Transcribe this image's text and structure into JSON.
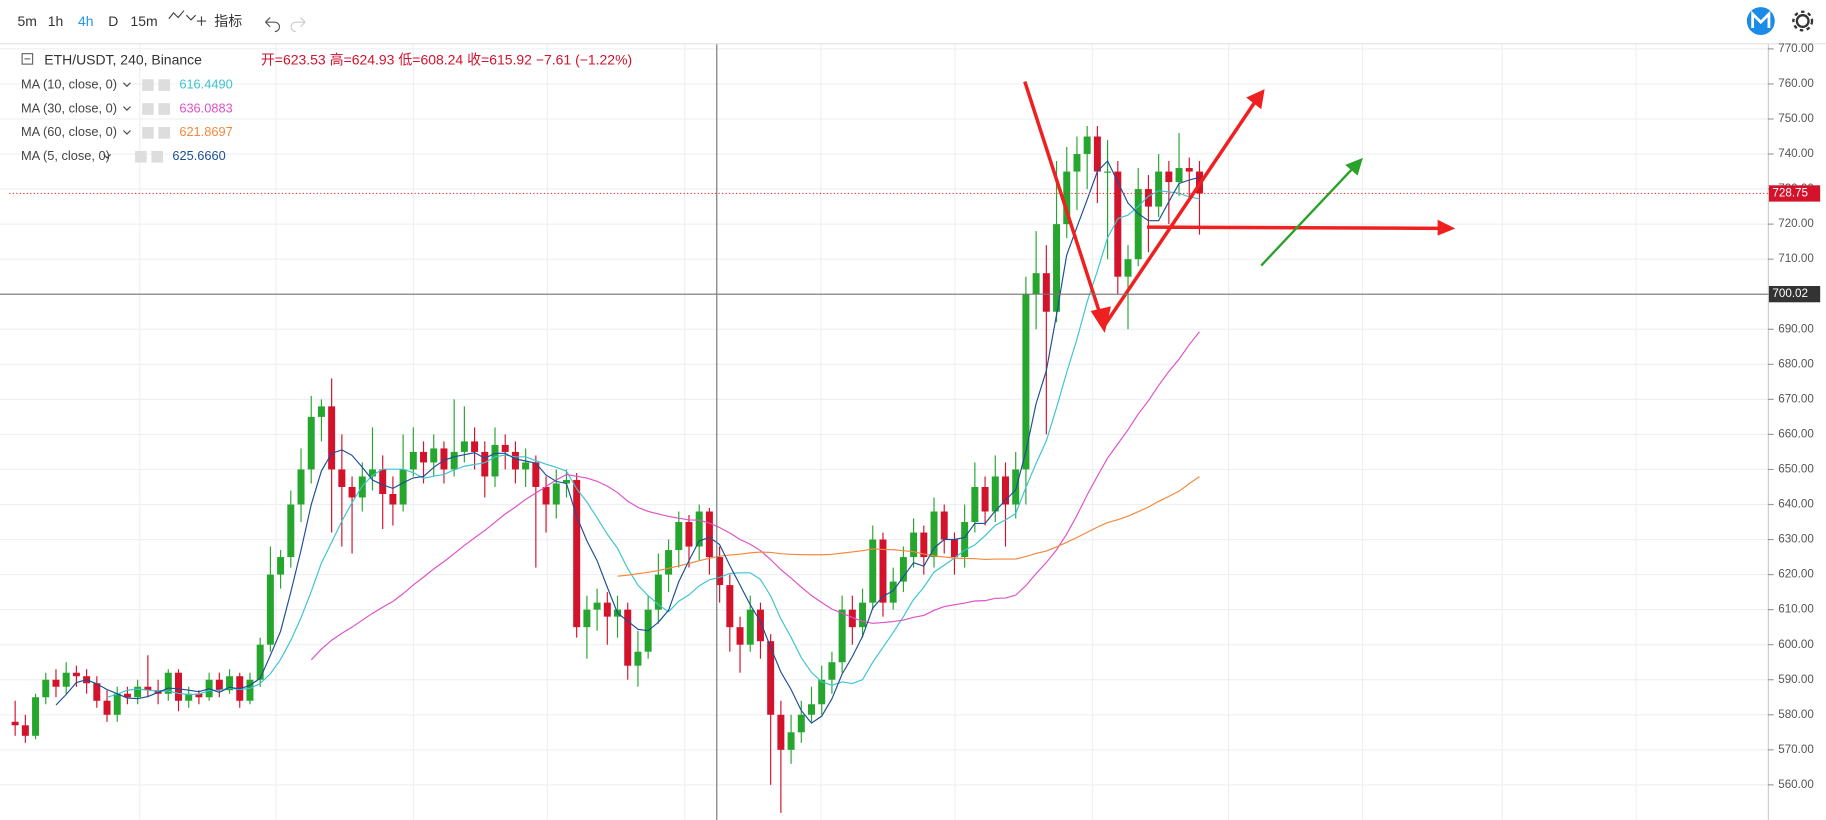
{
  "toolbar": {
    "intervals": [
      "5m",
      "1h",
      "4h",
      "D",
      "15m"
    ],
    "active": "4h",
    "indicators": "指标"
  },
  "legend": {
    "symbol": "ETH/USDT, 240, Binance",
    "open": "开=623.53",
    "high": "高=624.93",
    "low": "低=608.24",
    "close": "收=615.92",
    "change": "−7.61 (−1.22%)"
  },
  "chart_data": {
    "type": "candlestick",
    "up_color": "#26a62e",
    "down_color": "#d3122c",
    "candles": [
      [
        578,
        584,
        574,
        577
      ],
      [
        577,
        580,
        572,
        574
      ],
      [
        574,
        586,
        573,
        585
      ],
      [
        585,
        592,
        583,
        590
      ],
      [
        590,
        593,
        585,
        588
      ],
      [
        588,
        595,
        586,
        592
      ],
      [
        592,
        594,
        588,
        591
      ],
      [
        591,
        593,
        586,
        589
      ],
      [
        589,
        591,
        582,
        584
      ],
      [
        584,
        587,
        578,
        580
      ],
      [
        580,
        588,
        578,
        586
      ],
      [
        586,
        588,
        583,
        585
      ],
      [
        585,
        590,
        583,
        588
      ],
      [
        588,
        597,
        585,
        587
      ],
      [
        587,
        590,
        583,
        586
      ],
      [
        586,
        593,
        584,
        592
      ],
      [
        592,
        593,
        581,
        584
      ],
      [
        584,
        588,
        582,
        586
      ],
      [
        586,
        587,
        583,
        585
      ],
      [
        585,
        592,
        584,
        590
      ],
      [
        590,
        592,
        585,
        587
      ],
      [
        587,
        593,
        586,
        591
      ],
      [
        591,
        592,
        582,
        584
      ],
      [
        584,
        592,
        583,
        590
      ],
      [
        590,
        602,
        588,
        600
      ],
      [
        600,
        628,
        598,
        620
      ],
      [
        620,
        627,
        616,
        625
      ],
      [
        625,
        644,
        622,
        640
      ],
      [
        640,
        656,
        635,
        650
      ],
      [
        650,
        671,
        646,
        665
      ],
      [
        665,
        670,
        658,
        668
      ],
      [
        668,
        676,
        632,
        650
      ],
      [
        650,
        660,
        628,
        645
      ],
      [
        645,
        648,
        626,
        642
      ],
      [
        642,
        652,
        638,
        648
      ],
      [
        648,
        662,
        644,
        650
      ],
      [
        650,
        654,
        633,
        643
      ],
      [
        643,
        648,
        634,
        640
      ],
      [
        640,
        660,
        638,
        650
      ],
      [
        650,
        662,
        648,
        655
      ],
      [
        655,
        658,
        646,
        652
      ],
      [
        652,
        660,
        648,
        656
      ],
      [
        656,
        658,
        646,
        650
      ],
      [
        650,
        670,
        648,
        655
      ],
      [
        655,
        668,
        652,
        658
      ],
      [
        658,
        662,
        650,
        655
      ],
      [
        655,
        658,
        642,
        648
      ],
      [
        648,
        662,
        645,
        657
      ],
      [
        657,
        660,
        650,
        655
      ],
      [
        655,
        658,
        646,
        650
      ],
      [
        650,
        656,
        645,
        652
      ],
      [
        652,
        654,
        622,
        645
      ],
      [
        645,
        648,
        632,
        640
      ],
      [
        640,
        650,
        636,
        646
      ],
      [
        646,
        650,
        642,
        647
      ],
      [
        647,
        649,
        602,
        605
      ],
      [
        605,
        614,
        596,
        610
      ],
      [
        610,
        616,
        604,
        612
      ],
      [
        612,
        615,
        600,
        608
      ],
      [
        608,
        614,
        602,
        610
      ],
      [
        610,
        612,
        590,
        594
      ],
      [
        594,
        604,
        588,
        598
      ],
      [
        598,
        614,
        596,
        610
      ],
      [
        610,
        626,
        606,
        620
      ],
      [
        620,
        630,
        615,
        627
      ],
      [
        627,
        638,
        622,
        635
      ],
      [
        635,
        637,
        622,
        628
      ],
      [
        628,
        640,
        624,
        638
      ],
      [
        638,
        639,
        620,
        625
      ],
      [
        625,
        628,
        612,
        617
      ],
      [
        617,
        620,
        598,
        605
      ],
      [
        605,
        608,
        592,
        600
      ],
      [
        600,
        614,
        598,
        610
      ],
      [
        610,
        612,
        596,
        601
      ],
      [
        601,
        603,
        560,
        580
      ],
      [
        580,
        584,
        552,
        570
      ],
      [
        570,
        580,
        566,
        575
      ],
      [
        575,
        584,
        572,
        580
      ],
      [
        580,
        588,
        578,
        583
      ],
      [
        583,
        594,
        580,
        590
      ],
      [
        590,
        598,
        586,
        595
      ],
      [
        595,
        614,
        592,
        610
      ],
      [
        610,
        614,
        600,
        605
      ],
      [
        605,
        616,
        602,
        612
      ],
      [
        612,
        634,
        610,
        630
      ],
      [
        630,
        632,
        608,
        612
      ],
      [
        612,
        622,
        610,
        618
      ],
      [
        618,
        628,
        615,
        625
      ],
      [
        625,
        636,
        622,
        632
      ],
      [
        632,
        634,
        620,
        625
      ],
      [
        625,
        642,
        622,
        638
      ],
      [
        638,
        640,
        626,
        630
      ],
      [
        630,
        632,
        620,
        625
      ],
      [
        625,
        640,
        622,
        635
      ],
      [
        635,
        652,
        632,
        645
      ],
      [
        645,
        648,
        634,
        638
      ],
      [
        638,
        654,
        635,
        648
      ],
      [
        648,
        652,
        628,
        640
      ],
      [
        640,
        655,
        636,
        650
      ],
      [
        650,
        705,
        640,
        700
      ],
      [
        700,
        718,
        690,
        706
      ],
      [
        706,
        714,
        660,
        695
      ],
      [
        695,
        738,
        692,
        720
      ],
      [
        720,
        742,
        716,
        735
      ],
      [
        735,
        745,
        724,
        740
      ],
      [
        740,
        748,
        730,
        745
      ],
      [
        745,
        748,
        726,
        735
      ],
      [
        735,
        744,
        710,
        735
      ],
      [
        735,
        738,
        700,
        705
      ],
      [
        705,
        714,
        690,
        710
      ],
      [
        710,
        736,
        708,
        730
      ],
      [
        730,
        734,
        712,
        725
      ],
      [
        725,
        740,
        722,
        735
      ],
      [
        735,
        738,
        720,
        732
      ],
      [
        732,
        746,
        728,
        736
      ],
      [
        736,
        739,
        727,
        735
      ],
      [
        735,
        738,
        717,
        728.75
      ]
    ],
    "indicators": [
      {
        "name": "MA (10, close, 0)",
        "period": 10,
        "value": "616.4490",
        "color": "#3cc4d0"
      },
      {
        "name": "MA (30, close, 0)",
        "period": 30,
        "value": "636.0883",
        "color": "#e050c8"
      },
      {
        "name": "MA (60, close, 0)",
        "period": 60,
        "value": "621.8697",
        "color": "#f4883d"
      },
      {
        "name": "MA (5, close, 0)",
        "period": 5,
        "value": "625.6660",
        "color": "#1c4f96"
      }
    ],
    "ylim": [
      550,
      771.3
    ],
    "yticks": [
      {
        "value": 560,
        "label": "560.00"
      },
      {
        "value": 570,
        "label": "570.00"
      },
      {
        "value": 580,
        "label": "580.00"
      },
      {
        "value": 590,
        "label": "590.00"
      },
      {
        "value": 600,
        "label": "600.00"
      },
      {
        "value": 610,
        "label": "610.00"
      },
      {
        "value": 620,
        "label": "620.00"
      },
      {
        "value": 630,
        "label": "630.00"
      },
      {
        "value": 640,
        "label": "640.00"
      },
      {
        "value": 650,
        "label": "650.00"
      },
      {
        "value": 660,
        "label": "660.00"
      },
      {
        "value": 670,
        "label": "670.00"
      },
      {
        "value": 680,
        "label": "680.00"
      },
      {
        "value": 690,
        "label": "690.00"
      },
      {
        "value": 700,
        "label": "700.00"
      },
      {
        "value": 710,
        "label": "710.00"
      },
      {
        "value": 720,
        "label": "720.00"
      },
      {
        "value": 730,
        "label": "730.00"
      },
      {
        "value": 740,
        "label": "740.00"
      },
      {
        "value": 750,
        "label": "750.00"
      },
      {
        "value": 760,
        "label": "760.00"
      },
      {
        "value": 770,
        "label": "770.00"
      }
    ],
    "last_price": {
      "value": 728.75,
      "label": "728.75"
    },
    "crosshair_price": {
      "value": 700.02,
      "label": "700.02"
    }
  }
}
